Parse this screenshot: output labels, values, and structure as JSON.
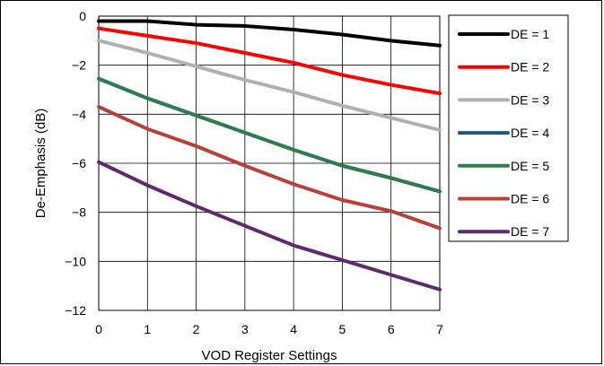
{
  "chart_data": {
    "type": "line",
    "xlabel": "VOD Register Settings",
    "ylabel": "De-Emphasis (dB)",
    "xlim": [
      0,
      7
    ],
    "ylim": [
      -12,
      0
    ],
    "xticks": [
      "0",
      "1",
      "2",
      "3",
      "4",
      "5",
      "6",
      "7"
    ],
    "yticks": [
      "0",
      "−2",
      "−4",
      "−6",
      "−8",
      "−10",
      "−12"
    ],
    "grid": true,
    "legend_position": "right",
    "x": [
      0,
      1,
      2,
      3,
      4,
      5,
      6,
      7
    ],
    "series": [
      {
        "name": "DE = 1",
        "color": "#000000",
        "values": [
          -0.2,
          -0.2,
          -0.35,
          -0.4,
          -0.55,
          -0.75,
          -1.0,
          -1.2
        ]
      },
      {
        "name": "DE = 2",
        "color": "#ff0000",
        "values": [
          -0.5,
          -0.8,
          -1.1,
          -1.5,
          -1.9,
          -2.4,
          -2.8,
          -3.15
        ]
      },
      {
        "name": "DE = 3",
        "color": "#b0b0b0",
        "values": [
          -1.0,
          -1.5,
          -2.05,
          -2.6,
          -3.1,
          -3.65,
          -4.15,
          -4.65
        ]
      },
      {
        "name": "DE = 4",
        "color": "#1f5a7a",
        "values": [
          -2.55,
          -3.35,
          -4.05,
          -4.75,
          -5.45,
          -6.1,
          -6.6,
          -7.15
        ]
      },
      {
        "name": "DE = 5",
        "color": "#2e7d4f",
        "values": [
          -2.55,
          -3.35,
          -4.05,
          -4.75,
          -5.45,
          -6.1,
          -6.6,
          -7.15
        ]
      },
      {
        "name": "DE = 6",
        "color": "#b5413a",
        "values": [
          -3.7,
          -4.6,
          -5.3,
          -6.1,
          -6.85,
          -7.5,
          -7.95,
          -8.65
        ]
      },
      {
        "name": "DE = 7",
        "color": "#5e2a6e",
        "values": [
          -5.95,
          -6.9,
          -7.75,
          -8.55,
          -9.35,
          -9.95,
          -10.55,
          -11.15
        ]
      }
    ]
  }
}
